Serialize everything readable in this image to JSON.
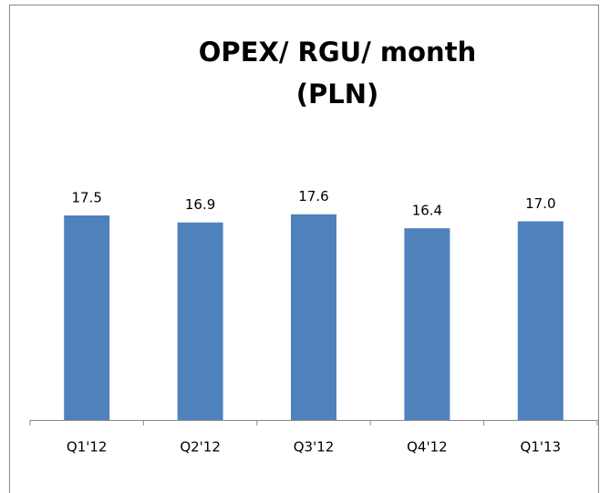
{
  "chart_data": {
    "type": "bar",
    "title": "OPEX/ RGU/ month (PLN)",
    "categories": [
      "Q1'12",
      "Q2'12",
      "Q3'12",
      "Q4'12",
      "Q1'13"
    ],
    "values": [
      17.5,
      16.9,
      17.6,
      16.4,
      17.0
    ],
    "value_labels": [
      "17.5",
      "16.9",
      "17.6",
      "16.4",
      "17.0"
    ],
    "color": "#4f81bd",
    "ylim": [
      0,
      20
    ]
  }
}
